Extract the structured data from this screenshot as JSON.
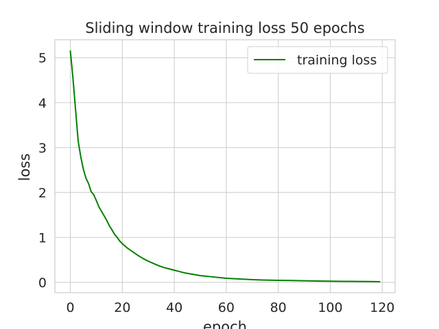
{
  "chart_data": {
    "type": "line",
    "title": "Sliding window training loss 50 epochs",
    "xlabel": "epoch",
    "ylabel": "loss",
    "xlim": [
      -5.95,
      124.95
    ],
    "ylim": [
      -0.23,
      5.4
    ],
    "xticks": [
      0,
      20,
      40,
      60,
      80,
      100,
      120
    ],
    "yticks": [
      0,
      1,
      2,
      3,
      4,
      5
    ],
    "grid": true,
    "legend_position": "top-right",
    "series": [
      {
        "name": "training loss",
        "color": "#008000",
        "x": [
          0,
          1,
          2,
          3,
          4,
          5,
          6,
          7,
          8,
          9,
          10,
          11,
          12,
          13,
          14,
          15,
          16,
          17,
          18,
          19,
          20,
          22,
          24,
          26,
          28,
          30,
          32,
          34,
          36,
          38,
          40,
          42,
          44,
          46,
          48,
          50,
          55,
          60,
          65,
          70,
          75,
          80,
          85,
          90,
          95,
          100,
          105,
          110,
          115,
          119
        ],
        "y": [
          5.15,
          4.55,
          3.85,
          3.15,
          2.8,
          2.52,
          2.32,
          2.2,
          2.02,
          1.95,
          1.82,
          1.68,
          1.58,
          1.48,
          1.38,
          1.26,
          1.17,
          1.07,
          1.0,
          0.92,
          0.86,
          0.76,
          0.68,
          0.6,
          0.53,
          0.47,
          0.42,
          0.37,
          0.33,
          0.3,
          0.27,
          0.24,
          0.21,
          0.19,
          0.17,
          0.15,
          0.12,
          0.09,
          0.075,
          0.06,
          0.05,
          0.045,
          0.04,
          0.035,
          0.03,
          0.025,
          0.022,
          0.02,
          0.018,
          0.015
        ]
      }
    ]
  }
}
